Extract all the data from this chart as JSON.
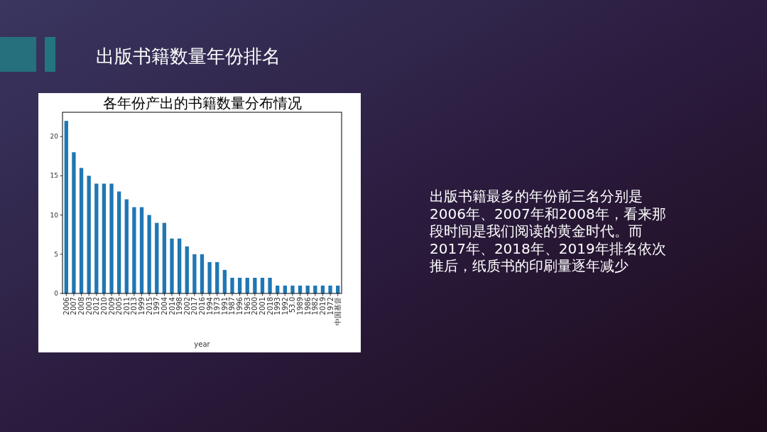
{
  "chart_data": {
    "type": "bar",
    "title": "出版书籍数量年份排名",
    "subtitle": "各年份产出的书籍数量分布情况",
    "xlabel": "year",
    "categories": [
      "2006",
      "2007",
      "2008",
      "2003",
      "2012",
      "2010",
      "2009",
      "2005",
      "2011",
      "2013",
      "1999",
      "2015",
      "1997",
      "2004",
      "2014",
      "1998",
      "2002",
      "2017",
      "2016",
      "1994",
      "1973",
      "1991",
      "1987",
      "1996",
      "1963",
      "2000",
      "2001",
      "2018",
      "1993",
      "1992",
      "53.0",
      "1989",
      "1986",
      "1982",
      "2019",
      "1972",
      "中国基督"
    ],
    "values": [
      22,
      18,
      16,
      15,
      14,
      14,
      14,
      13,
      12,
      11,
      11,
      10,
      9,
      9,
      7,
      7,
      6,
      5,
      5,
      4,
      4,
      3,
      2,
      2,
      2,
      2,
      2,
      2,
      1,
      1,
      1,
      1,
      1,
      1,
      1,
      1,
      1
    ],
    "color": "#1f77b4",
    "ylim": [
      0,
      23.1
    ],
    "yticks": [
      0,
      5,
      10,
      15,
      20
    ],
    "annotations": [
      "出版书籍最多的年份前三名分别是2006年、2007年和2008年，看来那段时间是我们阅读的黄金时代。而2017年、2018年、2019年排名依次推后，纸质书的印刷量逐年减少"
    ]
  }
}
